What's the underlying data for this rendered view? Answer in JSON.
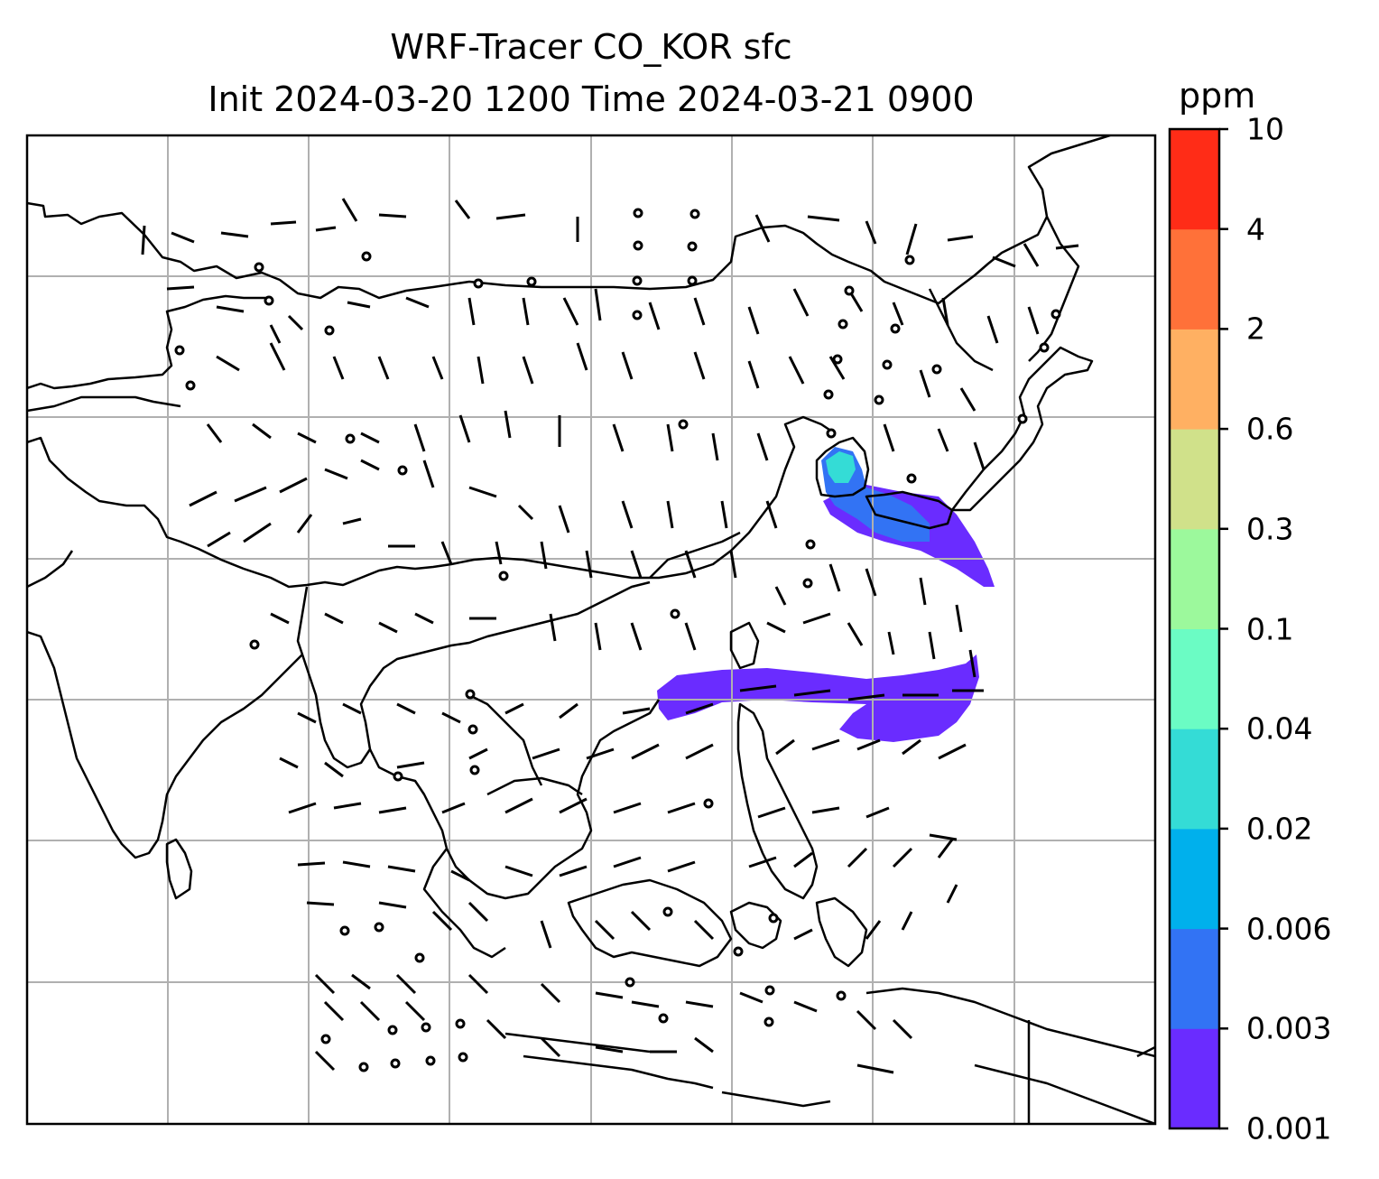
{
  "title": {
    "line1": "WRF-Tracer CO_KOR sfc",
    "line2": "Init 2024-03-20 1200 Time 2024-03-21 0900"
  },
  "colorbar": {
    "unit": "ppm",
    "levels": [
      "0.001",
      "0.003",
      "0.006",
      "0.02",
      "0.04",
      "0.1",
      "0.3",
      "0.6",
      "2",
      "4",
      "10"
    ],
    "colors": [
      "#6a2cff",
      "#3273f4",
      "#00b0ec",
      "#34dcd6",
      "#6bfcc4",
      "#9cf99c",
      "#d0e18a",
      "#ffb062",
      "#ff7139",
      "#ff2c17"
    ]
  },
  "map": {
    "background": "#ffffff",
    "coastline_color": "#000000",
    "grid_color": "#b0b0b0",
    "plume_colors": {
      "low": "#6a2cff",
      "mid": "#3273f4",
      "cyan": "#34dcd6"
    }
  }
}
